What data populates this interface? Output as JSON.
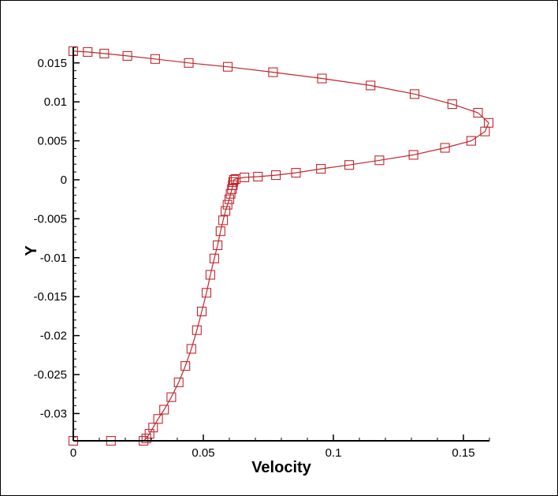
{
  "chart_data": {
    "type": "line",
    "title": "",
    "xlabel": "Velocity",
    "ylabel": "Y",
    "xlim": [
      0,
      0.16
    ],
    "ylim": [
      -0.0335,
      0.017
    ],
    "grid": false,
    "legend": "none",
    "x_ticks": [
      {
        "value": 0,
        "label": "0"
      },
      {
        "value": 0.05,
        "label": "0.05"
      },
      {
        "value": 0.1,
        "label": "0.1"
      },
      {
        "value": 0.15,
        "label": "0.15"
      }
    ],
    "y_ticks": [
      {
        "value": 0.015,
        "label": "0.015"
      },
      {
        "value": 0.01,
        "label": "0.01"
      },
      {
        "value": 0.005,
        "label": "0.005"
      },
      {
        "value": 0,
        "label": "0"
      },
      {
        "value": -0.005,
        "label": "-0.005"
      },
      {
        "value": -0.01,
        "label": "-0.01"
      },
      {
        "value": -0.015,
        "label": "-0.015"
      },
      {
        "value": -0.02,
        "label": "-0.02"
      },
      {
        "value": -0.025,
        "label": "-0.025"
      },
      {
        "value": -0.03,
        "label": "-0.03"
      }
    ],
    "series": [
      {
        "color": "#c0272d",
        "marker": "square",
        "x": [
          0.0,
          0.0055,
          0.0119,
          0.0208,
          0.0315,
          0.0444,
          0.0594,
          0.0768,
          0.0956,
          0.1143,
          0.1312,
          0.1457,
          0.1556,
          0.1597,
          0.1583,
          0.153,
          0.1429,
          0.1308,
          0.1177,
          0.1061,
          0.0952,
          0.0856,
          0.0779,
          0.071,
          0.0658,
          0.0624,
          0.0618,
          0.0615,
          0.0613,
          0.061,
          0.0605,
          0.06,
          0.0593,
          0.0585,
          0.0576,
          0.0566,
          0.0555,
          0.0542,
          0.0527,
          0.0512,
          0.0494,
          0.0475,
          0.0454,
          0.0431,
          0.0405,
          0.0377,
          0.0349,
          0.0326,
          0.0307,
          0.0293,
          0.0281,
          0.027,
          0.0145,
          0.0
        ],
        "y": [
          0.0165,
          0.0164,
          0.0162,
          0.0159,
          0.0155,
          0.015,
          0.0145,
          0.0138,
          0.013,
          0.0121,
          0.011,
          0.0097,
          0.0086,
          0.0073,
          0.0062,
          0.005,
          0.0041,
          0.0032,
          0.0025,
          0.0019,
          0.0014,
          0.0009,
          0.0006,
          0.0004,
          0.0003,
          0.0001,
          0.0,
          -0.0003,
          -0.0007,
          -0.0012,
          -0.0018,
          -0.0025,
          -0.0032,
          -0.004,
          -0.0052,
          -0.0066,
          -0.0084,
          -0.0101,
          -0.0122,
          -0.0145,
          -0.0169,
          -0.0193,
          -0.0217,
          -0.0239,
          -0.026,
          -0.0279,
          -0.0295,
          -0.0307,
          -0.0318,
          -0.0326,
          -0.0332,
          -0.0335,
          -0.0335,
          -0.0335
        ]
      }
    ]
  }
}
